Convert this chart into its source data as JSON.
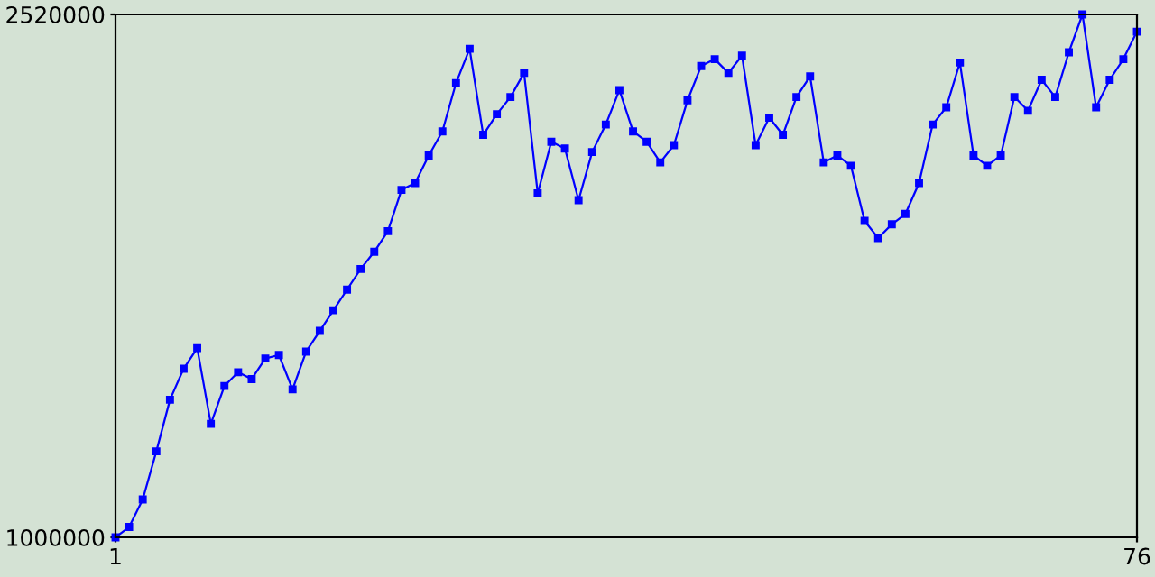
{
  "chart_data": {
    "type": "line",
    "x": [
      1,
      2,
      3,
      4,
      5,
      6,
      7,
      8,
      9,
      10,
      11,
      12,
      13,
      14,
      15,
      16,
      17,
      18,
      19,
      20,
      21,
      22,
      23,
      24,
      25,
      26,
      27,
      28,
      29,
      30,
      31,
      32,
      33,
      34,
      35,
      36,
      37,
      38,
      39,
      40,
      41,
      42,
      43,
      44,
      45,
      46,
      47,
      48,
      49,
      50,
      51,
      52,
      53,
      54,
      55,
      56,
      57,
      58,
      59,
      60,
      61,
      62,
      63,
      64,
      65,
      66,
      67,
      68,
      69,
      70,
      71,
      72,
      73,
      74,
      75,
      76
    ],
    "series": [
      {
        "color": "#0000ff",
        "values": [
          1000000,
          1030000,
          1110000,
          1250000,
          1400000,
          1490000,
          1550000,
          1330000,
          1440000,
          1480000,
          1460000,
          1520000,
          1530000,
          1430000,
          1540000,
          1600000,
          1660000,
          1720000,
          1780000,
          1830000,
          1890000,
          2010000,
          2030000,
          2110000,
          2180000,
          2320000,
          2420000,
          2170000,
          2230000,
          2280000,
          2350000,
          2000000,
          2150000,
          2130000,
          1980000,
          2120000,
          2200000,
          2300000,
          2180000,
          2150000,
          2090000,
          2140000,
          2270000,
          2370000,
          2390000,
          2350000,
          2400000,
          2140000,
          2220000,
          2170000,
          2280000,
          2340000,
          2090000,
          2110000,
          2080000,
          1920000,
          1870000,
          1910000,
          1940000,
          2030000,
          2200000,
          2250000,
          2380000,
          2110000,
          2080000,
          2110000,
          2280000,
          2240000,
          2330000,
          2280000,
          2410000,
          2520000,
          2250000,
          2330000,
          2390000,
          2470000
        ]
      }
    ],
    "xlim": [
      1,
      76
    ],
    "ylim": [
      1000000,
      2520000
    ],
    "xticks": [
      1,
      76
    ],
    "yticks": [
      1000000,
      2520000
    ],
    "grid": false,
    "marker": "square",
    "line_style": "solid"
  }
}
